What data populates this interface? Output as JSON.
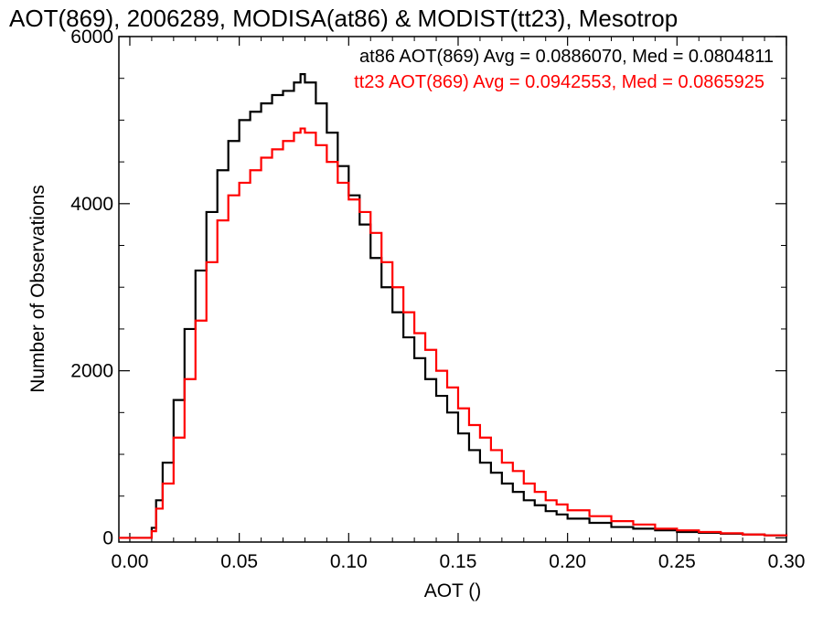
{
  "chart_data": {
    "type": "line",
    "title": "AOT(869), 2006289, MODISA(at86) & MODIST(tt23), Mesotrop",
    "xlabel": "AOT ()",
    "ylabel": "Number of Observations",
    "xlim": [
      -0.005,
      0.3
    ],
    "ylim": [
      -50,
      6000
    ],
    "x_ticks": [
      0.0,
      0.05,
      0.1,
      0.15,
      0.2,
      0.25,
      0.3
    ],
    "x_tick_labels": [
      "0.00",
      "0.05",
      "0.10",
      "0.15",
      "0.20",
      "0.25",
      "0.30"
    ],
    "y_ticks": [
      0,
      2000,
      4000,
      6000
    ],
    "y_tick_labels": [
      "0",
      "2000",
      "4000",
      "6000"
    ],
    "legend_position": "top-right",
    "step": true,
    "x": [
      -0.005,
      0.0,
      0.005,
      0.009,
      0.01,
      0.012,
      0.015,
      0.02,
      0.025,
      0.03,
      0.035,
      0.04,
      0.045,
      0.05,
      0.055,
      0.06,
      0.065,
      0.07,
      0.075,
      0.078,
      0.08,
      0.085,
      0.09,
      0.095,
      0.1,
      0.105,
      0.11,
      0.115,
      0.12,
      0.125,
      0.13,
      0.135,
      0.14,
      0.145,
      0.15,
      0.155,
      0.16,
      0.165,
      0.17,
      0.175,
      0.18,
      0.185,
      0.19,
      0.195,
      0.2,
      0.21,
      0.22,
      0.23,
      0.24,
      0.25,
      0.26,
      0.27,
      0.28,
      0.29,
      0.3
    ],
    "series": [
      {
        "name": "at86",
        "color": "#000000",
        "legend_text": "at86 AOT(869) Avg = 0.0886070, Med = 0.0804811",
        "values": [
          0,
          0,
          0,
          0,
          120,
          450,
          900,
          1650,
          2500,
          3200,
          3900,
          4400,
          4750,
          5000,
          5100,
          5200,
          5300,
          5350,
          5450,
          5550,
          5450,
          5200,
          4850,
          4450,
          4100,
          3750,
          3350,
          3000,
          2700,
          2400,
          2150,
          1900,
          1700,
          1500,
          1250,
          1050,
          900,
          780,
          650,
          550,
          450,
          390,
          320,
          280,
          230,
          180,
          130,
          110,
          90,
          70,
          60,
          50,
          40,
          30,
          20
        ]
      },
      {
        "name": "tt23",
        "color": "#ff0000",
        "legend_text": "tt23 AOT(869) Avg = 0.0942553, Med = 0.0865925",
        "values": [
          0,
          0,
          0,
          0,
          80,
          350,
          650,
          1200,
          1900,
          2600,
          3300,
          3800,
          4100,
          4250,
          4400,
          4550,
          4650,
          4750,
          4850,
          4900,
          4850,
          4700,
          4500,
          4250,
          4050,
          3900,
          3650,
          3300,
          3000,
          2700,
          2450,
          2250,
          2000,
          1800,
          1550,
          1350,
          1200,
          1050,
          900,
          800,
          650,
          550,
          450,
          400,
          330,
          260,
          200,
          160,
          110,
          90,
          70,
          55,
          40,
          30,
          20
        ]
      }
    ]
  }
}
